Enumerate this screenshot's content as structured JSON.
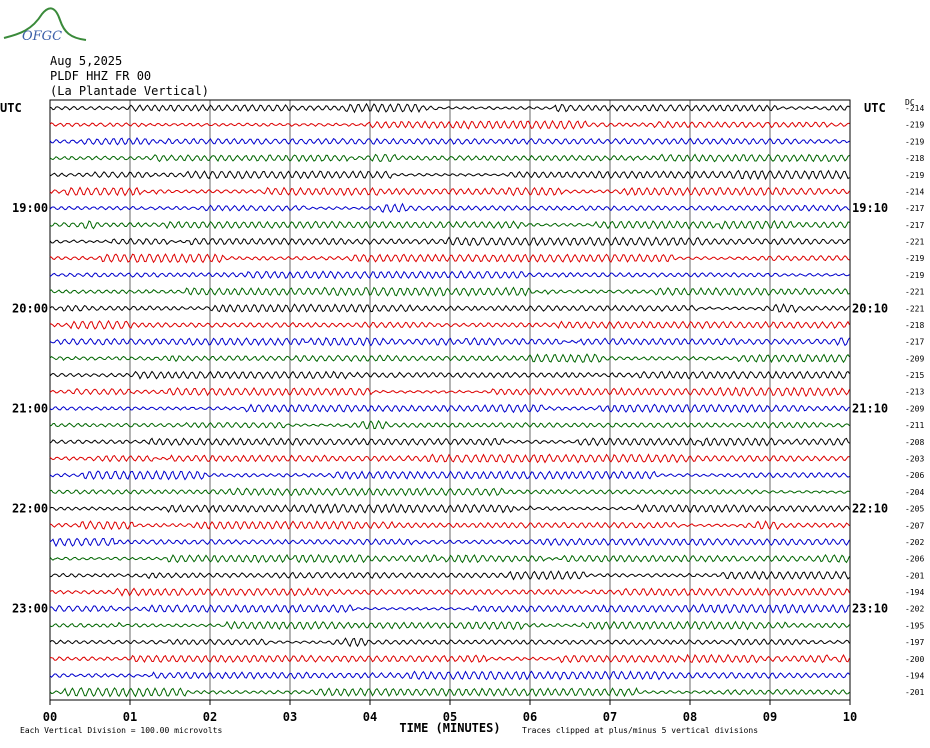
{
  "logo": "OFGC",
  "header": {
    "date": "Aug 5,2025",
    "station": "PLDF HHZ FR 00",
    "location": "(La Plantade Vertical)"
  },
  "left_labels": [
    "UTC",
    "19:00",
    "20:00",
    "21:00",
    "22:00",
    "23:00"
  ],
  "right_labels": [
    "UTC",
    "19:10",
    "20:10",
    "21:10",
    "22:10",
    "23:10"
  ],
  "dc_header": "DC",
  "dc_values": [
    -214,
    -219,
    -219,
    -218,
    -219,
    -214,
    -217,
    -217,
    -221,
    -219,
    -219,
    -221,
    -221,
    -218,
    -217,
    -209,
    -215,
    -213,
    -209,
    -211,
    -208,
    -203,
    -206,
    -204,
    -205,
    -207,
    -202,
    -206,
    -201,
    -194,
    -202,
    -195,
    -197,
    -200,
    -194,
    -201
  ],
  "trace_colors": [
    "#000000",
    "#dd0000",
    "#0000cc",
    "#006600"
  ],
  "x_ticks": [
    "00",
    "01",
    "02",
    "03",
    "04",
    "05",
    "06",
    "07",
    "08",
    "09",
    "10"
  ],
  "x_label": "TIME (MINUTES)",
  "footer": {
    "scale": "Each Vertical Division =  100.00 microvolts",
    "clip": "Traces clipped at plus/minus 5 vertical divisions"
  }
}
